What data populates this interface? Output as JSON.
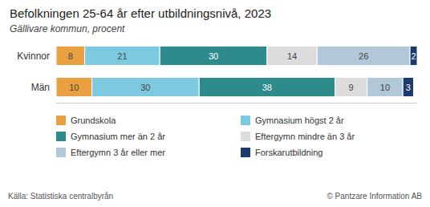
{
  "chart_data": {
    "type": "bar",
    "orientation": "horizontal",
    "stacked": true,
    "title": "Befolkningen 25-64 år efter utbildningsnivå, 2023",
    "subtitle": "Gällivare kommun, procent",
    "categories": [
      "Kvinnor",
      "Män"
    ],
    "series": [
      {
        "name": "Grundskola",
        "color": "#E8A040",
        "values": [
          8,
          10
        ]
      },
      {
        "name": "Gymnasium högst 2 år",
        "color": "#7DCAE0",
        "values": [
          21,
          30
        ]
      },
      {
        "name": "Gymnasium mer än 2 år",
        "color": "#2E8B8B",
        "values": [
          30,
          38
        ]
      },
      {
        "name": "Eftergymn mindre än 3 år",
        "color": "#DCDCDC",
        "values": [
          14,
          9
        ]
      },
      {
        "name": "Eftergymn 3 år eller mer",
        "color": "#B0C8D8",
        "values": [
          26,
          10
        ]
      },
      {
        "name": "Forskarutbildning",
        "color": "#1C3A6E",
        "values": [
          2,
          3
        ]
      }
    ],
    "xlim": [
      0,
      101
    ],
    "tick_labels": "y",
    "data_labels": true,
    "legend": "bottom",
    "grid": false,
    "annotations": [
      "Källa: Statistiska centralbyrån",
      "© Pantzare Information AB"
    ]
  }
}
